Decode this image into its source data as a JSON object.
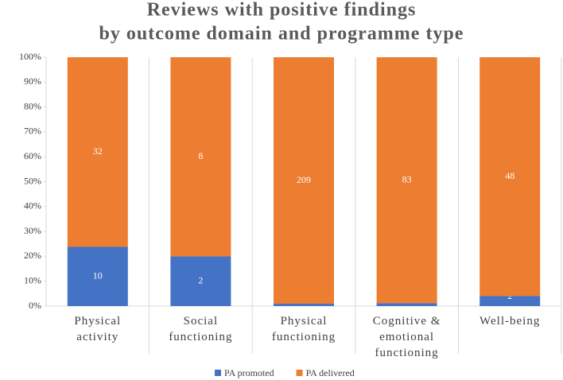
{
  "chart_data": {
    "type": "bar",
    "stacking": "percent",
    "title": [
      "Reviews with positive findings",
      "by outcome domain and programme type"
    ],
    "categories": [
      "Physical activity",
      "Social functioning",
      "Physical functioning",
      "Cognitive & emotional functioning",
      "Well-being"
    ],
    "series": [
      {
        "name": "PA promoted",
        "color": "#4472c4",
        "values": [
          10,
          2,
          2,
          1,
          2
        ]
      },
      {
        "name": "PA delivered",
        "color": "#ed7d31",
        "values": [
          32,
          8,
          209,
          83,
          48
        ]
      }
    ],
    "ylim": [
      0,
      100
    ],
    "yticks": [
      {
        "value": 0,
        "label": "0%"
      },
      {
        "value": 10,
        "label": "10%"
      },
      {
        "value": 20,
        "label": "20%"
      },
      {
        "value": 30,
        "label": "30%"
      },
      {
        "value": 40,
        "label": "40%"
      },
      {
        "value": 50,
        "label": "50%"
      },
      {
        "value": 60,
        "label": "60%"
      },
      {
        "value": 70,
        "label": "70%"
      },
      {
        "value": 80,
        "label": "80%"
      },
      {
        "value": 90,
        "label": "90%"
      },
      {
        "value": 100,
        "label": "100%"
      }
    ],
    "legend": "bottom"
  }
}
